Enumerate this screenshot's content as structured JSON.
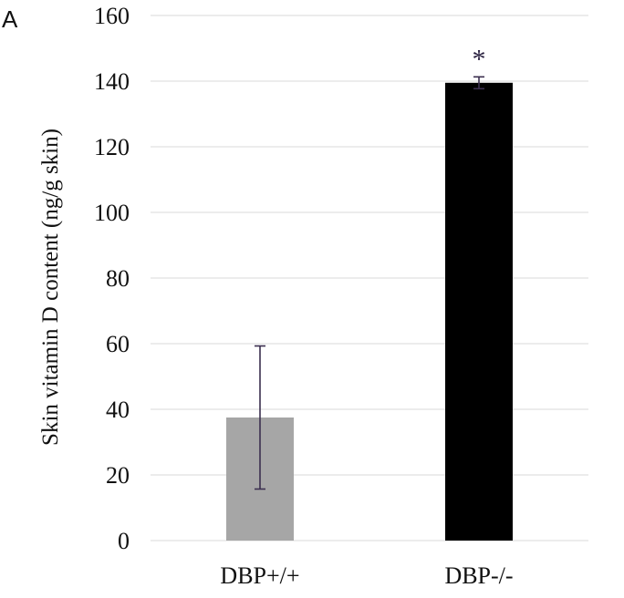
{
  "panel_label": "A",
  "chart_data": {
    "type": "bar",
    "categories": [
      "DBP+/+",
      "DBP-/-"
    ],
    "values": [
      37.5,
      139.5
    ],
    "errors": [
      21.8,
      1.8
    ],
    "bar_colors": [
      "#a6a6a6",
      "#000000"
    ],
    "annotations": [
      "",
      "*"
    ],
    "ylabel": "Skin vitamin D content (ng/g skin)",
    "xlabel": "",
    "ylim": [
      0,
      160
    ],
    "yticks": [
      0,
      20,
      40,
      60,
      80,
      100,
      120,
      140,
      160
    ],
    "grid": true,
    "grid_color": "#d9d9d9",
    "error_bar_color": "#3b2f4f"
  }
}
